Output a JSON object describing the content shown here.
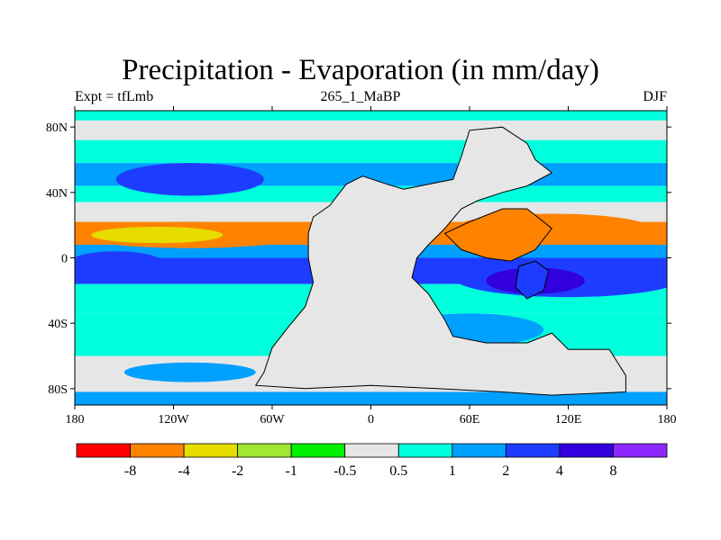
{
  "title": "Precipitation - Evaporation (in mm/day)",
  "subtitle_left": "Expt = tfLmb",
  "subtitle_center": "265_1_MaBP",
  "subtitle_right": "DJF",
  "chart_data": {
    "type": "heatmap",
    "title": "Precipitation - Evaporation (in mm/day)",
    "x_ticks": [
      "180",
      "120W",
      "60W",
      "0",
      "60E",
      "120E",
      "180"
    ],
    "y_ticks": [
      "80N",
      "40N",
      "0",
      "40S",
      "80S"
    ],
    "xlim": [
      -180,
      180
    ],
    "ylim": [
      -90,
      90
    ],
    "x_tick_values": [
      -180,
      -120,
      -60,
      0,
      60,
      120,
      180
    ],
    "y_tick_values": [
      80,
      40,
      0,
      -40,
      -80
    ],
    "colorbar": {
      "labels": [
        "-8",
        "-4",
        "-2",
        "-1",
        "-0.5",
        "0.5",
        "1",
        "2",
        "4",
        "8"
      ],
      "colors": [
        "#ff0000",
        "#ff8200",
        "#e6dc00",
        "#a0e632",
        "#00f000",
        "#e6e6e6",
        "#00ffdc",
        "#00a0ff",
        "#1e3cff",
        "#3200dc",
        "#8c28ff"
      ]
    },
    "bands": [
      {
        "lat_max": 90,
        "lat_min": 84,
        "level": "#00ffdc"
      },
      {
        "lat_max": 84,
        "lat_min": 72,
        "level": "#e6e6e6"
      },
      {
        "lat_max": 72,
        "lat_min": 58,
        "level": "#00ffdc"
      },
      {
        "lat_max": 58,
        "lat_min": 44,
        "level": "#00a0ff"
      },
      {
        "lat_max": 44,
        "lat_min": 34,
        "level": "#00ffdc"
      },
      {
        "lat_max": 34,
        "lat_min": 22,
        "level": "#e6e6e6"
      },
      {
        "lat_max": 22,
        "lat_min": 8,
        "level": "#ff8200"
      },
      {
        "lat_max": 8,
        "lat_min": 0,
        "level": "#00a0ff"
      },
      {
        "lat_max": 0,
        "lat_min": -16,
        "level": "#1e3cff"
      },
      {
        "lat_max": -16,
        "lat_min": -34,
        "level": "#00ffdc"
      },
      {
        "lat_max": -34,
        "lat_min": -60,
        "level": "#00ffdc"
      },
      {
        "lat_max": -60,
        "lat_min": -82,
        "level": "#e6e6e6"
      },
      {
        "lat_max": -82,
        "lat_min": -90,
        "level": "#00a0ff"
      }
    ]
  }
}
